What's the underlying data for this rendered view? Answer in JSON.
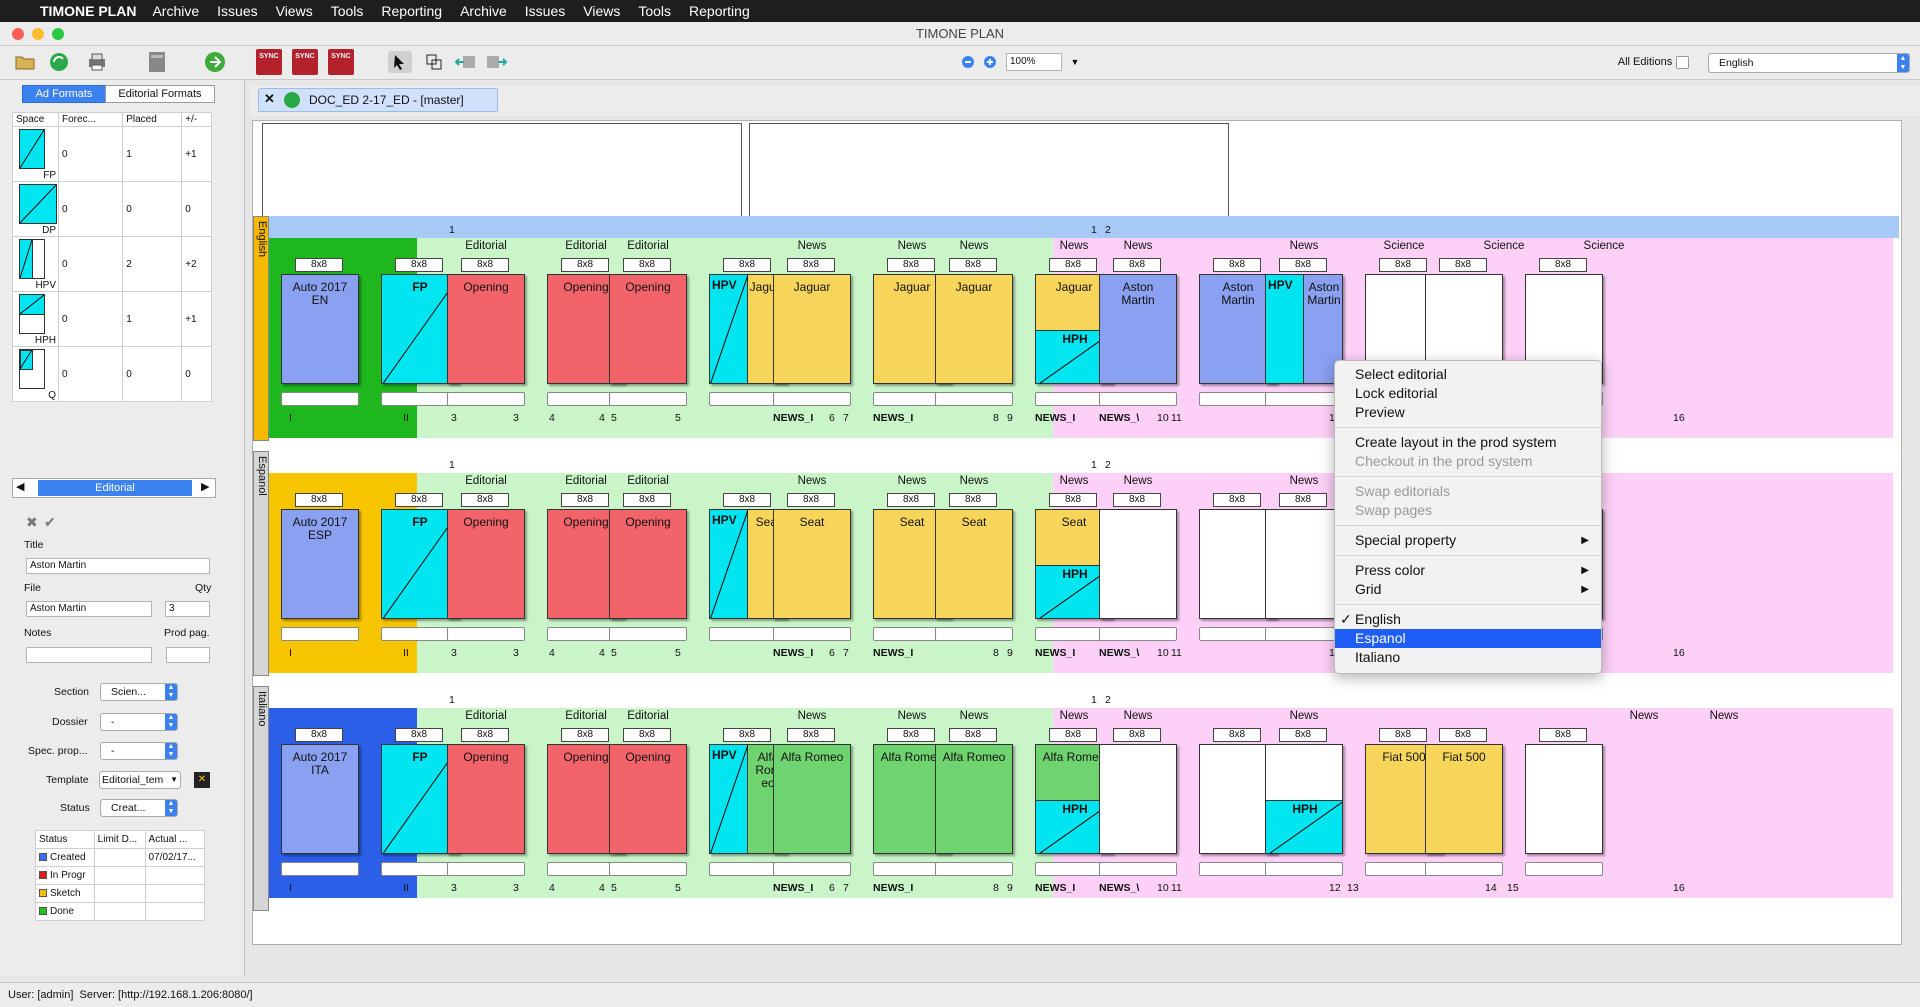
{
  "menubar": {
    "app": "TIMONE PLAN",
    "items": [
      "Archive",
      "Issues",
      "Views",
      "Tools",
      "Reporting",
      "Archive",
      "Issues",
      "Views",
      "Tools",
      "Reporting"
    ]
  },
  "window": {
    "title": "TIMONE PLAN"
  },
  "toolbar": {
    "sync_label": "SYNC",
    "zoom": "100%",
    "all_editions_label": "All Editions",
    "language": "English"
  },
  "left": {
    "tabs": [
      "Ad Formats",
      "Editorial Formats"
    ],
    "space_table": {
      "headers": [
        "Space",
        "Forec...",
        "Placed",
        "+/-"
      ],
      "rows": [
        {
          "label": "FP",
          "forecast": "0",
          "placed": "1",
          "diff": "+1"
        },
        {
          "label": "DP",
          "forecast": "0",
          "placed": "0",
          "diff": "0"
        },
        {
          "label": "HPV",
          "forecast": "0",
          "placed": "2",
          "diff": "+2"
        },
        {
          "label": "HPH",
          "forecast": "0",
          "placed": "1",
          "diff": "+1"
        },
        {
          "label": "Q",
          "forecast": "0",
          "placed": "0",
          "diff": "0"
        }
      ]
    },
    "nav_title": "Editorial",
    "form": {
      "title_label": "Title",
      "title_value": "Aston Martin",
      "file_label": "File",
      "file_value": "Aston Martin",
      "qty_label": "Qty",
      "qty_value": "3",
      "notes_label": "Notes",
      "prodpag_label": "Prod pag.",
      "section_label": "Section",
      "section_value": "Scien...",
      "dossier_label": "Dossier",
      "dossier_value": "-",
      "specprop_label": "Spec. prop...",
      "specprop_value": "-",
      "template_label": "Template",
      "template_value": "Editorial_tem",
      "status_label": "Status",
      "status_value": "Creat..."
    },
    "status_table": {
      "headers": [
        "Status",
        "Limit D...",
        "Actual ..."
      ],
      "rows": [
        {
          "name": "Created",
          "color": "#3b6cf4",
          "limit": "",
          "actual": "07/02/17..."
        },
        {
          "name": "In Progr",
          "color": "#e01b1b",
          "limit": "",
          "actual": ""
        },
        {
          "name": "Sketch",
          "color": "#f3c010",
          "limit": "",
          "actual": ""
        },
        {
          "name": "Done",
          "color": "#1fc31f",
          "limit": "",
          "actual": ""
        }
      ]
    }
  },
  "doc_tab": "DOC_ED 2-17_ED - [master]",
  "plan": {
    "format": "8x8",
    "languages": [
      {
        "name": "English",
        "cover": "Auto 2017\nEN",
        "titles": [
          "Opening",
          "Opening",
          "Opening",
          "Jaguar",
          "Jaguar",
          "Jaguar",
          "Jaguar",
          "Jaguar",
          "Aston\nMartin",
          "Aston\nMartin",
          "Aston\nMartin"
        ]
      },
      {
        "name": "Espanol",
        "cover": "Auto 2017\nESP",
        "titles": [
          "Opening",
          "Opening",
          "Opening",
          "Seat",
          "Seat",
          "Seat",
          "Seat",
          "Seat"
        ]
      },
      {
        "name": "Italiano",
        "cover": "Auto 2017\nITA",
        "titles": [
          "Opening",
          "Opening",
          "Opening",
          "Alfa\nRom\neo",
          "Alfa Romeo",
          "Alfa Romeo",
          "Alfa Romeo",
          "Alfa Romeo",
          "Fiat 500",
          "Fiat 500"
        ]
      }
    ],
    "sections": {
      "editorial": "Editorial",
      "news": "News",
      "science": "Science"
    },
    "labels": {
      "fp": "FP",
      "hpv": "HPV",
      "hph": "HPH",
      "news": "NEWS_I",
      "newsv": "NEWS_\\",
      "roman1": "I",
      "roman2": "II"
    },
    "page_numbers": [
      "1",
      "2",
      "3",
      "4",
      "5",
      "6",
      "7",
      "8",
      "9",
      "10",
      "11",
      "12",
      "13",
      "14",
      "15",
      "16"
    ]
  },
  "context_menu": {
    "items": [
      "Select editorial",
      "Lock editorial",
      "Preview",
      "Create layout in the prod system",
      "Checkout in the prod system",
      "Swap editorials",
      "Swap pages",
      "Special property",
      "Press color",
      "Grid",
      "English",
      "Espanol",
      "Italiano"
    ],
    "checked": "English",
    "highlighted": "Espanol"
  },
  "statusbar": {
    "user": "User: [admin]",
    "server": "Server: [http://192.168.1.206:8080/]"
  }
}
